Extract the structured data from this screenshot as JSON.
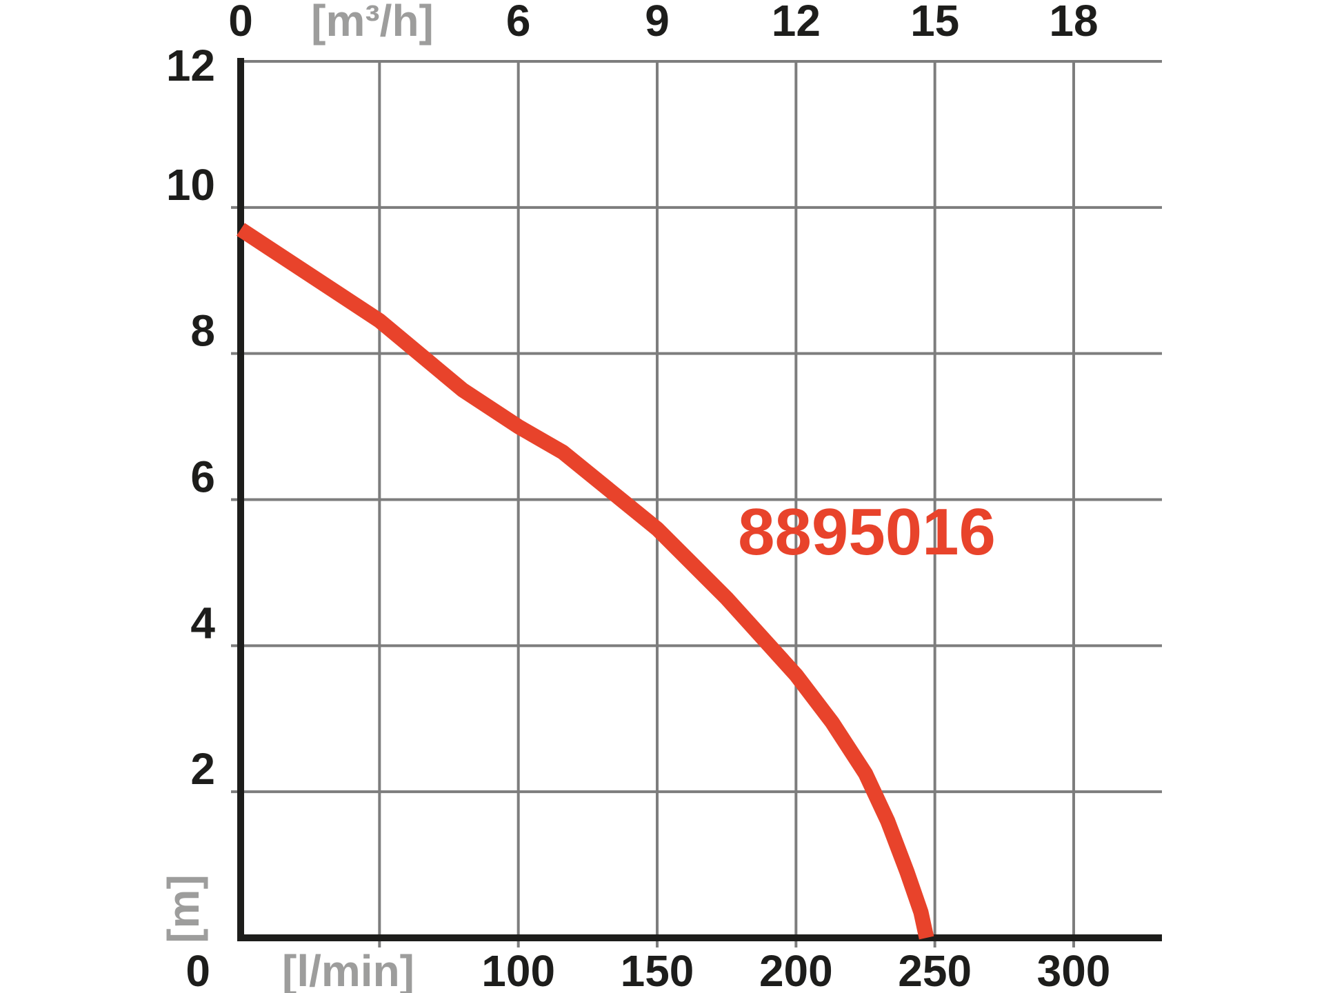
{
  "chart_data": {
    "type": "line",
    "title": "",
    "description": "Pump performance curve: delivery head [m] versus flow rate [l/min] (bottom axis) and [m³/h] (top axis)",
    "series": [
      {
        "name": "8895016",
        "color": "#e8432b",
        "points_lmin_m": [
          [
            0,
            9.7
          ],
          [
            50,
            8.45
          ],
          [
            80,
            7.5
          ],
          [
            100,
            7.0
          ],
          [
            116,
            6.65
          ],
          [
            150,
            5.6
          ],
          [
            175,
            4.65
          ],
          [
            200,
            3.6
          ],
          [
            213,
            2.95
          ],
          [
            225,
            2.25
          ],
          [
            233,
            1.6
          ],
          [
            240,
            0.9
          ],
          [
            245,
            0.35
          ],
          [
            247,
            0
          ]
        ]
      }
    ],
    "annotation": {
      "text": "8895016",
      "x_lmin": 225.5,
      "y_m": 5.57
    },
    "x_axis_bottom": {
      "unit_label": "[l/min]",
      "origin_label": "0",
      "ticks": [
        "100",
        "150",
        "200",
        "250",
        "300"
      ],
      "tick_values_lmin": [
        100,
        150,
        200,
        250,
        300
      ],
      "range_lmin": [
        0,
        332
      ]
    },
    "x_axis_top": {
      "unit_label": "[m³/h]",
      "ticks": [
        "0",
        "6",
        "9",
        "12",
        "15",
        "18"
      ],
      "tick_values_m3h": [
        0,
        6,
        9,
        12,
        15,
        18
      ],
      "range_m3h": [
        0,
        19.9
      ]
    },
    "y_axis": {
      "unit_label": "[m]",
      "ticks": [
        "12",
        "10",
        "8",
        "6",
        "4",
        "2"
      ],
      "tick_values_m": [
        12,
        10,
        8,
        6,
        4,
        2
      ],
      "range_m": [
        0,
        12
      ]
    },
    "grid": {
      "on": true,
      "v_lines_lmin": [
        50,
        100,
        150,
        200,
        250,
        300
      ],
      "h_lines_m": [
        12,
        10,
        8,
        6,
        4,
        2
      ]
    },
    "colors": {
      "curve": "#e8432b",
      "grid": "#7d7d7d",
      "axis": "#1d1d1b",
      "tick_label": "#1d1d1b",
      "unit_label": "#9d9d9c",
      "background": "#ffffff"
    },
    "legend_position": "none"
  }
}
